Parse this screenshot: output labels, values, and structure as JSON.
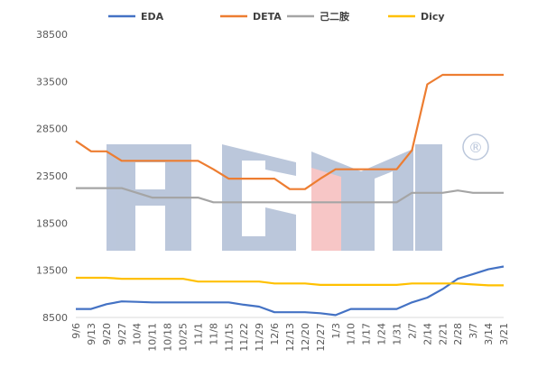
{
  "chart_data": {
    "type": "line",
    "title": "",
    "xlabel": "",
    "ylabel": "",
    "categories": [
      "9/6",
      "9/13",
      "9/20",
      "9/27",
      "10/4",
      "10/11",
      "10/18",
      "10/25",
      "11/1",
      "11/8",
      "11/15",
      "11/22",
      "11/29",
      "12/6",
      "12/13",
      "12/20",
      "12/27",
      "1/3",
      "1/10",
      "1/17",
      "1/24",
      "1/31",
      "2/7",
      "2/14",
      "2/21",
      "2/28",
      "3/7",
      "3/14",
      "3/21"
    ],
    "yticks": [
      "8500",
      "13500",
      "18500",
      "23500",
      "28500",
      "33500",
      "38500"
    ],
    "ylim": [
      8500,
      38500
    ],
    "grid": false,
    "legend_position": "top",
    "series": [
      {
        "name": "EDA",
        "color": "#4472C4",
        "values": [
          9400,
          9400,
          9900,
          10200,
          10150,
          10100,
          10100,
          10100,
          10100,
          10100,
          10100,
          9850,
          9650,
          9050,
          9050,
          9050,
          8950,
          8750,
          9400,
          9400,
          9400,
          9400,
          10100,
          10600,
          11500,
          12600,
          13100,
          13600,
          13900
        ]
      },
      {
        "name": "DETA",
        "color": "#ED7D31",
        "values": [
          27200,
          26100,
          26100,
          25100,
          25100,
          25100,
          25100,
          25100,
          25100,
          24200,
          23200,
          23200,
          23200,
          23200,
          22100,
          22100,
          23200,
          24200,
          24200,
          24200,
          24200,
          24200,
          26200,
          33200,
          34200,
          34200,
          34200,
          34200,
          34200
        ]
      },
      {
        "name": "己二胺",
        "color": "#A5A5A5",
        "values": [
          22200,
          22200,
          22200,
          22200,
          21700,
          21200,
          21200,
          21200,
          21200,
          20700,
          20700,
          20700,
          20700,
          20700,
          20700,
          20700,
          20700,
          20700,
          20700,
          20700,
          20700,
          20700,
          21700,
          21700,
          21700,
          21950,
          21700,
          21700,
          21700
        ]
      },
      {
        "name": "Dicy",
        "color": "#FFC000",
        "values": [
          12700,
          12700,
          12700,
          12600,
          12600,
          12600,
          12600,
          12600,
          12300,
          12300,
          12300,
          12300,
          12300,
          12100,
          12100,
          12100,
          11950,
          11950,
          11950,
          11950,
          11950,
          11950,
          12100,
          12100,
          12100,
          12100,
          12000,
          11900,
          11900
        ]
      }
    ]
  },
  "watermark": {
    "text": "AGMI",
    "registered_symbol": "®",
    "color_main": "#8EA2C4",
    "color_accent": "#F2A1A1"
  }
}
